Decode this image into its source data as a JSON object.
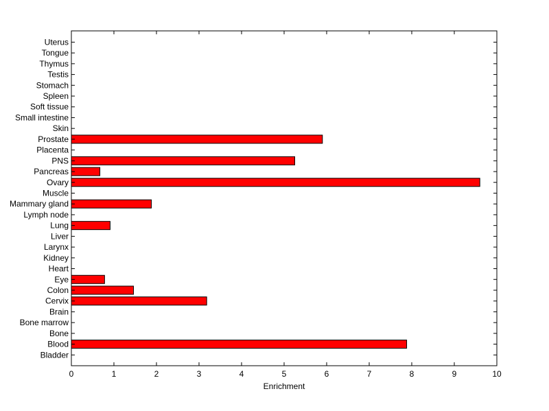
{
  "chart_data": {
    "type": "bar",
    "orientation": "horizontal",
    "title": "",
    "xlabel": "Enrichment",
    "ylabel": "",
    "xlim": [
      0,
      10
    ],
    "xticks": [
      0,
      1,
      2,
      3,
      4,
      5,
      6,
      7,
      8,
      9,
      10
    ],
    "grid": false,
    "legend": "none",
    "bar_color": "#ff0000",
    "bar_edge_color": "#000000",
    "categories": [
      "Bladder",
      "Blood",
      "Bone",
      "Bone marrow",
      "Brain",
      "Cervix",
      "Colon",
      "Eye",
      "Heart",
      "Kidney",
      "Larynx",
      "Liver",
      "Lung",
      "Lymph node",
      "Mammary gland",
      "Muscle",
      "Ovary",
      "Pancreas",
      "PNS",
      "Placenta",
      "Prostate",
      "Skin",
      "Small intestine",
      "Soft tissue",
      "Spleen",
      "Stomach",
      "Testis",
      "Thymus",
      "Tongue",
      "Uterus"
    ],
    "values": [
      0,
      7.88,
      0,
      0,
      0,
      3.18,
      1.46,
      0.78,
      0,
      0,
      0,
      0,
      0.91,
      0,
      1.88,
      0,
      9.6,
      0.67,
      5.25,
      0,
      5.9,
      0,
      0,
      0,
      0,
      0,
      0,
      0,
      0,
      0
    ]
  }
}
